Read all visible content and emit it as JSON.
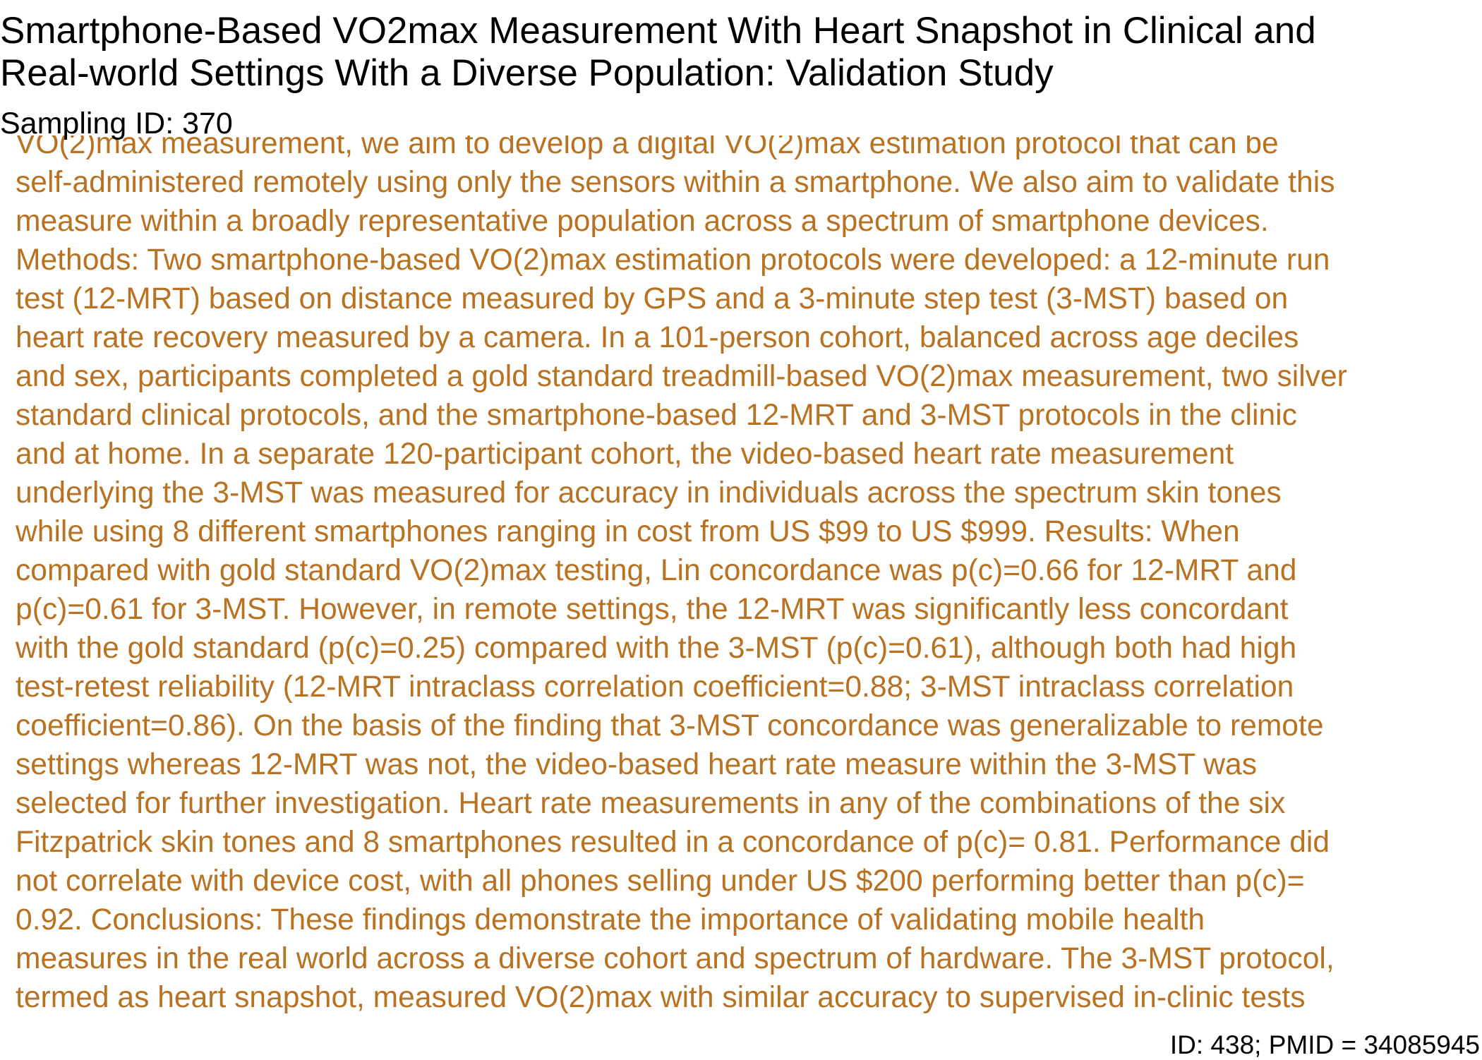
{
  "title": "Smartphone-Based VO2max Measurement With Heart Snapshot in Clinical and\nReal-world Settings With a Diverse Population: Validation Study",
  "sampling_id": "Sampling ID: 370",
  "abstract": "VO(2)max measurement, we aim to develop a digital VO(2)max estimation protocol that can be\nself-administered remotely using only the sensors within a smartphone. We also aim to validate this\nmeasure within a broadly representative population across a spectrum of smartphone devices.\nMethods: Two smartphone-based VO(2)max estimation protocols were developed: a 12-minute run\ntest (12-MRT) based on distance measured by GPS and a 3-minute step test (3-MST) based on\nheart rate recovery measured by a camera. In a 101-person cohort, balanced across age deciles\nand sex, participants completed a gold standard treadmill-based VO(2)max measurement, two silver\nstandard clinical protocols, and the smartphone-based 12-MRT and 3-MST protocols in the clinic\nand at home. In a separate 120-participant cohort, the video-based heart rate measurement\nunderlying the 3-MST was measured for accuracy in individuals across the spectrum skin tones\nwhile using 8 different smartphones ranging in cost from US $99 to US $999. Results: When\ncompared with gold standard VO(2)max testing, Lin concordance was p(c)=0.66 for 12-MRT and\np(c)=0.61 for 3-MST. However, in remote settings, the 12-MRT was significantly less concordant\nwith the gold standard (p(c)=0.25) compared with the 3-MST (p(c)=0.61), although both had high\ntest-retest reliability (12-MRT intraclass correlation coefficient=0.88; 3-MST intraclass correlation\ncoefficient=0.86). On the basis of the finding that 3-MST concordance was generalizable to remote\nsettings whereas 12-MRT was not, the video-based heart rate measure within the 3-MST was\nselected for further investigation. Heart rate measurements in any of the combinations of the six\nFitzpatrick skin tones and 8 smartphones resulted in a concordance of p(c)= 0.81. Performance did\nnot correlate with device cost, with all phones selling under US $200 performing better than p(c)=\n0.92. Conclusions: These findings demonstrate the importance of validating mobile health\nmeasures in the real world across a diverse cohort and spectrum of hardware. The 3-MST protocol,\ntermed as heart snapshot, measured VO(2)max with similar accuracy to supervised in-clinic tests",
  "footer": "ID: 438; PMID = 34085945",
  "colors": {
    "abstract_text": "#b87222",
    "heading_text": "#000000",
    "background": "#ffffff"
  }
}
